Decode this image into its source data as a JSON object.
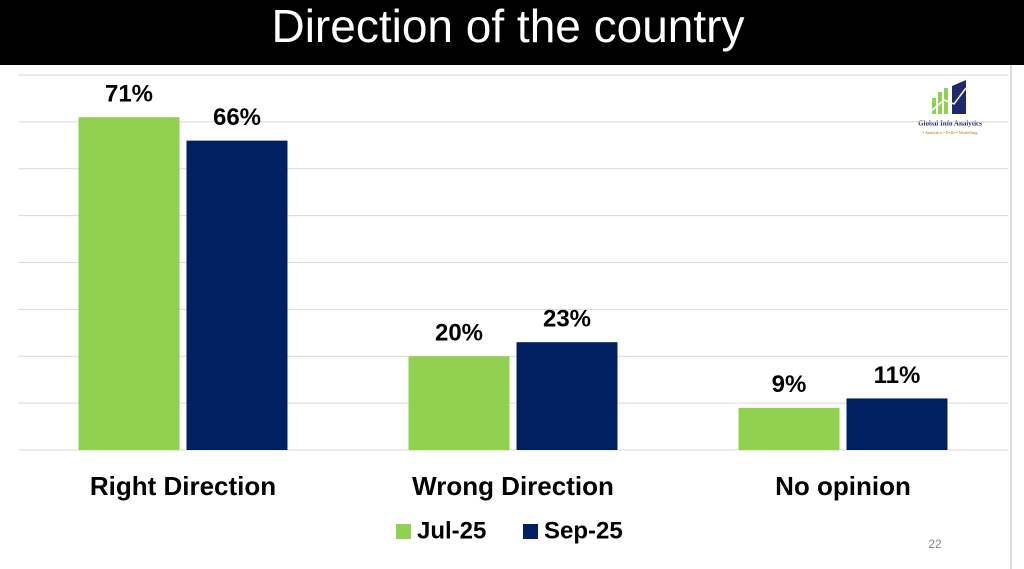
{
  "chart_data": {
    "type": "bar",
    "title": "Direction of the country",
    "categories": [
      "Right Direction",
      "Wrong Direction",
      "No opinion"
    ],
    "series": [
      {
        "name": "Jul-25",
        "color": "#92d050",
        "values": [
          71,
          20,
          9
        ],
        "value_labels": [
          "71%",
          "20%",
          "9%"
        ]
      },
      {
        "name": "Sep-25",
        "color": "#002060",
        "values": [
          66,
          23,
          11
        ],
        "value_labels": [
          "66%",
          "23%",
          "11%"
        ]
      }
    ],
    "ylim": [
      0,
      80
    ],
    "yticks": [
      0,
      10,
      20,
      30,
      40,
      50,
      60,
      70,
      80
    ],
    "grid": true
  },
  "logo": {
    "name": "Global Info Analytics",
    "tagline": "• Analytics • Polls • Modelling"
  },
  "page_number": "22"
}
